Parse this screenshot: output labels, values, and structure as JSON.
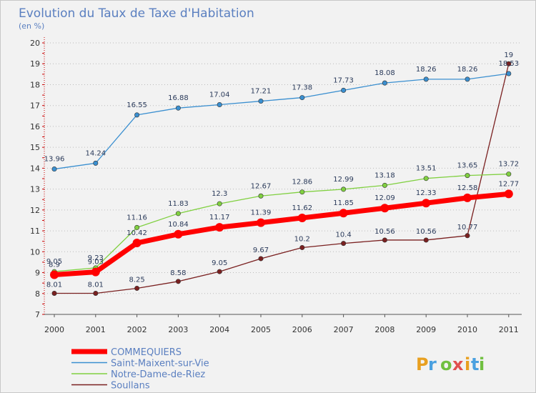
{
  "chart_data": {
    "type": "line",
    "title": "Evolution du Taux de Taxe d'Habitation",
    "ylabel": "(en %)",
    "x": [
      "2000",
      "2001",
      "2002",
      "2003",
      "2004",
      "2005",
      "2006",
      "2007",
      "2008",
      "2009",
      "2010",
      "2011"
    ],
    "ylim": [
      7,
      20
    ],
    "yticks": [
      "7",
      "8",
      "9",
      "10",
      "11",
      "12",
      "13",
      "14",
      "15",
      "16",
      "17",
      "18",
      "19",
      "20"
    ],
    "grid": "horizontal-dotted",
    "legend_position": "bottom-left",
    "series": [
      {
        "name": "COMMEQUIERS",
        "color": "#ff0000",
        "values": [
          8.9,
          9.03,
          10.42,
          10.84,
          11.17,
          11.39,
          11.62,
          11.85,
          12.09,
          12.33,
          12.58,
          12.77
        ],
        "labels": [
          "8.9",
          "9.03",
          "10.42",
          "10.84",
          "11.17",
          "11.39",
          "11.62",
          "11.85",
          "12.09",
          "12.33",
          "12.58",
          "12.77"
        ]
      },
      {
        "name": "Saint-Maixent-sur-Vie",
        "color": "#3a8fd0",
        "values": [
          13.96,
          14.24,
          16.55,
          16.88,
          17.04,
          17.21,
          17.38,
          17.73,
          18.08,
          18.26,
          18.26,
          18.53
        ],
        "labels": [
          "13.96",
          "14.24",
          "16.55",
          "16.88",
          "17.04",
          "17.21",
          "17.38",
          "17.73",
          "18.08",
          "18.26",
          "18.26",
          "18.53"
        ]
      },
      {
        "name": "Notre-Dame-de-Riez",
        "color": "#80d040",
        "values": [
          9.05,
          9.23,
          11.16,
          11.83,
          12.3,
          12.67,
          12.86,
          12.99,
          13.18,
          13.51,
          13.65,
          13.72
        ],
        "labels": [
          "9.05",
          "9.23",
          "11.16",
          "11.83",
          "12.3",
          "12.67",
          "12.86",
          "12.99",
          "13.18",
          "13.51",
          "13.65",
          "13.72"
        ]
      },
      {
        "name": "Soullans",
        "color": "#7a2020",
        "values": [
          8.01,
          8.01,
          8.25,
          8.58,
          9.05,
          9.67,
          10.2,
          10.4,
          10.56,
          10.56,
          10.77,
          19
        ],
        "labels": [
          "8.01",
          "8.01",
          "8.25",
          "8.58",
          "9.05",
          "9.67",
          "10.2",
          "10.4",
          "10.56",
          "10.56",
          "10.77",
          "19"
        ]
      }
    ]
  },
  "logo": {
    "text": "Proxiti",
    "colors": [
      "#e8a020",
      "#4aa0e0",
      "#70c040",
      "#e05050"
    ]
  }
}
